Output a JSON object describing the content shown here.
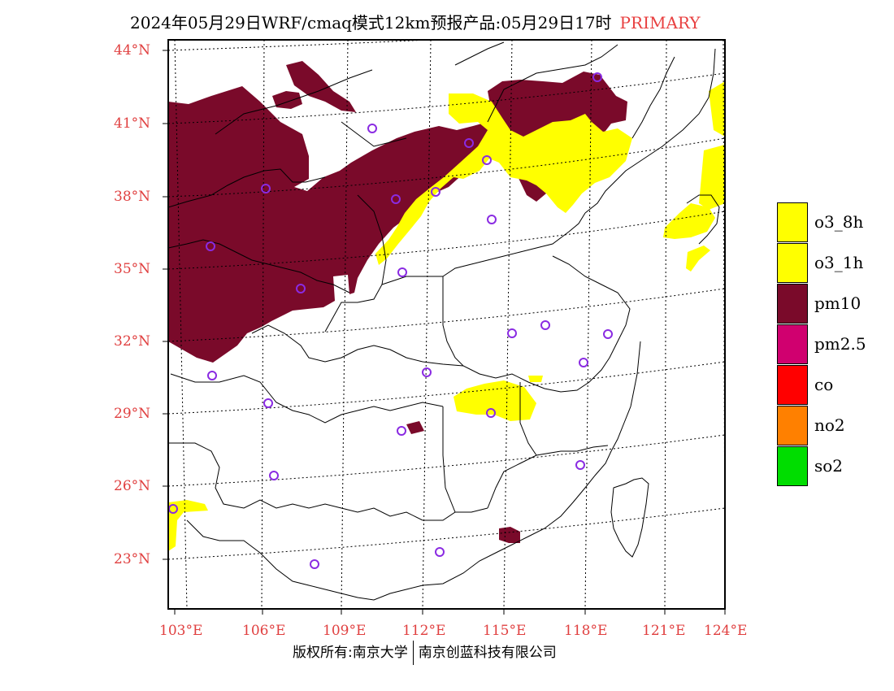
{
  "title": {
    "main": "2024年05月29日WRF/cmaq模式12km预报产品:05月29日17时",
    "tag": "PRIMARY"
  },
  "axes": {
    "lat_labels": [
      "44°N",
      "41°N",
      "38°N",
      "35°N",
      "32°N",
      "29°N",
      "26°N",
      "23°N"
    ],
    "lon_labels": [
      "103°E",
      "106°E",
      "109°E",
      "112°E",
      "115°E",
      "118°E",
      "121°E",
      "124°E"
    ]
  },
  "legend": [
    {
      "label": "o3_8h",
      "color": "#ffff00"
    },
    {
      "label": "o3_1h",
      "color": "#ffff00"
    },
    {
      "label": "pm10",
      "color": "#7a0a2a"
    },
    {
      "label": "pm2.5",
      "color": "#d0006f"
    },
    {
      "label": "co",
      "color": "#ff0000"
    },
    {
      "label": "no2",
      "color": "#ff8000"
    },
    {
      "label": "so2",
      "color": "#00dd00"
    }
  ],
  "copyright": {
    "left": "版权所有:南京大学",
    "right": "南京创蓝科技有限公司"
  },
  "colors": {
    "pm10": "#7a0a2a",
    "ozone": "#ffff00",
    "station_marker": "#8a2be2",
    "tick_text": "#e04040"
  }
}
